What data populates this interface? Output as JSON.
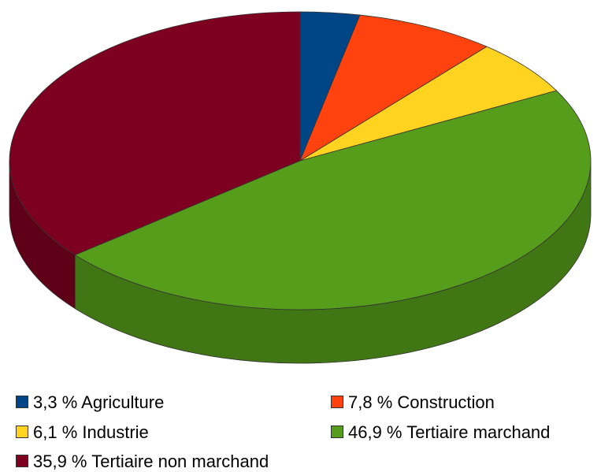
{
  "chart_data": {
    "type": "pie3d",
    "categories": [
      "Agriculture",
      "Construction",
      "Industrie",
      "Tertiaire marchand",
      "Tertiaire non marchand"
    ],
    "values": [
      3.3,
      7.8,
      6.1,
      46.9,
      35.9
    ],
    "value_labels": [
      "3,3 %",
      "7,8 %",
      "6,1 %",
      "46,9 %",
      "35,9 %"
    ],
    "colors": [
      "#004586",
      "#ff420e",
      "#ffd320",
      "#579d1c",
      "#7e0021"
    ]
  }
}
